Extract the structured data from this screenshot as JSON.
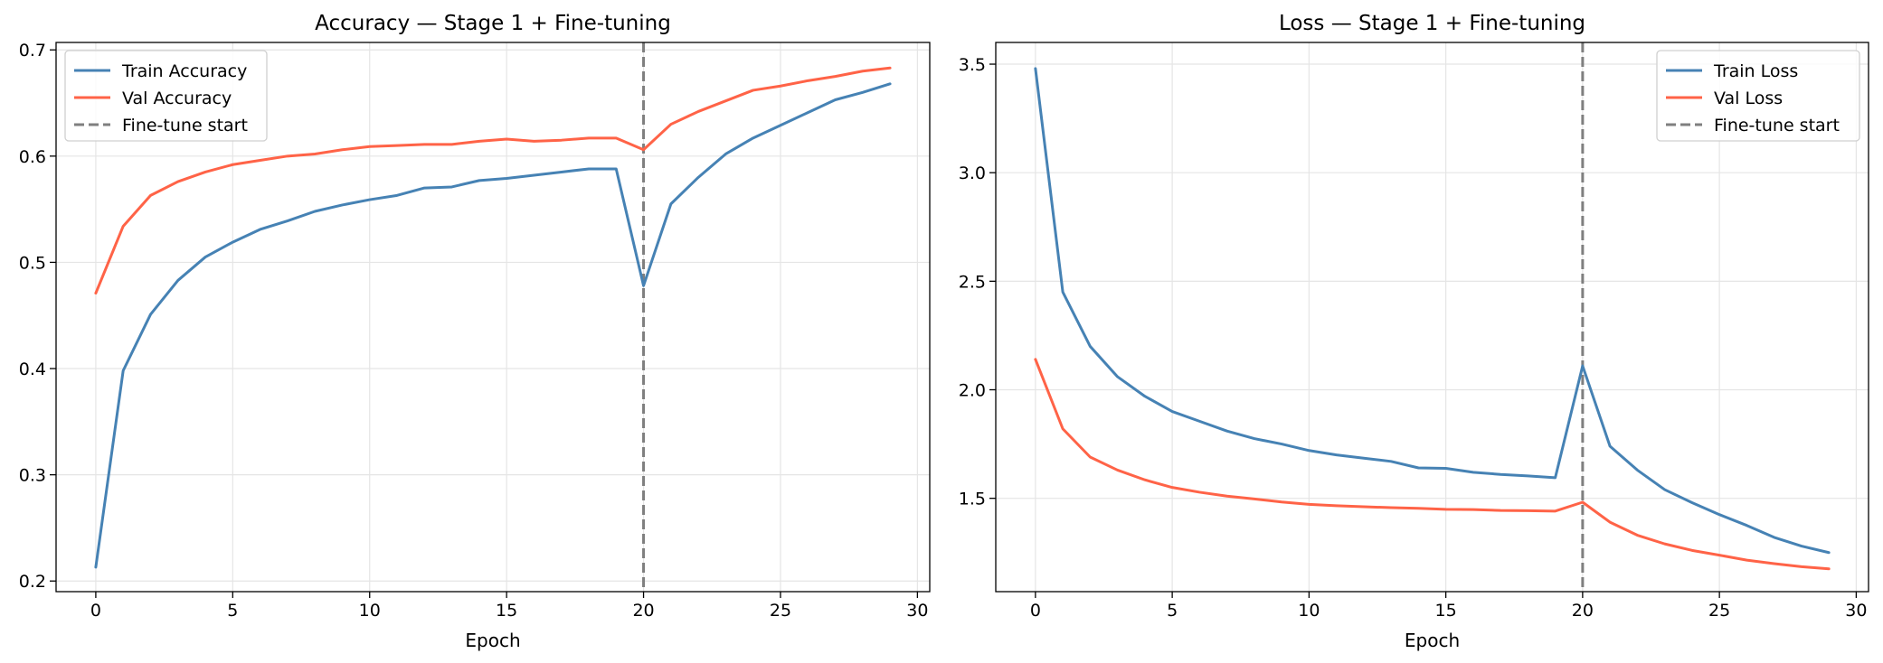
{
  "colors": {
    "train": "#4682b4",
    "val": "#ff6347",
    "finetune": "#7f7f7f",
    "grid": "#e5e5e5",
    "axis": "#000000"
  },
  "chart_data": [
    {
      "type": "line",
      "title": "Accuracy — Stage 1 + Fine-tuning",
      "xlabel": "Epoch",
      "ylabel": "",
      "xlim": [
        -1.45,
        30.45
      ],
      "ylim": [
        0.19,
        0.707
      ],
      "xticks": [
        0,
        5,
        10,
        15,
        20,
        25,
        30
      ],
      "yticks": [
        0.2,
        0.3,
        0.4,
        0.5,
        0.6,
        0.7
      ],
      "ytick_labels": [
        "0.2",
        "0.3",
        "0.4",
        "0.5",
        "0.6",
        "0.7"
      ],
      "grid": true,
      "legend_position": "upper-left",
      "x": [
        0,
        1,
        2,
        3,
        4,
        5,
        6,
        7,
        8,
        9,
        10,
        11,
        12,
        13,
        14,
        15,
        16,
        17,
        18,
        19,
        20,
        21,
        22,
        23,
        24,
        25,
        26,
        27,
        28,
        29
      ],
      "series": [
        {
          "name": "Train Accuracy",
          "color_key": "train",
          "values": [
            0.213,
            0.398,
            0.451,
            0.483,
            0.505,
            0.519,
            0.531,
            0.539,
            0.548,
            0.554,
            0.559,
            0.563,
            0.57,
            0.571,
            0.577,
            0.579,
            0.582,
            0.585,
            0.588,
            0.588,
            0.478,
            0.555,
            0.58,
            0.602,
            0.617,
            0.629,
            0.641,
            0.653,
            0.66,
            0.668
          ]
        },
        {
          "name": "Val Accuracy",
          "color_key": "val",
          "values": [
            0.471,
            0.534,
            0.563,
            0.576,
            0.585,
            0.592,
            0.596,
            0.6,
            0.602,
            0.606,
            0.609,
            0.61,
            0.611,
            0.611,
            0.614,
            0.616,
            0.614,
            0.615,
            0.617,
            0.617,
            0.606,
            0.63,
            0.642,
            0.652,
            0.662,
            0.666,
            0.671,
            0.675,
            0.68,
            0.683
          ]
        }
      ],
      "vline": {
        "x": 20,
        "name": "Fine-tune start",
        "color_key": "finetune"
      }
    },
    {
      "type": "line",
      "title": "Loss — Stage 1 + Fine-tuning",
      "xlabel": "Epoch",
      "ylabel": "",
      "xlim": [
        -1.45,
        30.45
      ],
      "ylim": [
        1.07,
        3.6
      ],
      "xticks": [
        0,
        5,
        10,
        15,
        20,
        25,
        30
      ],
      "yticks": [
        1.5,
        2.0,
        2.5,
        3.0,
        3.5
      ],
      "ytick_labels": [
        "1.5",
        "2.0",
        "2.5",
        "3.0",
        "3.5"
      ],
      "grid": true,
      "legend_position": "upper-right",
      "x": [
        0,
        1,
        2,
        3,
        4,
        5,
        6,
        7,
        8,
        9,
        10,
        11,
        12,
        13,
        14,
        15,
        16,
        17,
        18,
        19,
        20,
        21,
        22,
        23,
        24,
        25,
        26,
        27,
        28,
        29
      ],
      "series": [
        {
          "name": "Train Loss",
          "color_key": "train",
          "values": [
            3.48,
            2.45,
            2.2,
            2.06,
            1.97,
            1.9,
            1.855,
            1.81,
            1.775,
            1.75,
            1.72,
            1.7,
            1.685,
            1.67,
            1.64,
            1.638,
            1.62,
            1.61,
            1.603,
            1.595,
            2.11,
            1.74,
            1.63,
            1.54,
            1.48,
            1.425,
            1.375,
            1.32,
            1.28,
            1.25
          ]
        },
        {
          "name": "Val Loss",
          "color_key": "val",
          "values": [
            2.14,
            1.82,
            1.69,
            1.63,
            1.585,
            1.55,
            1.528,
            1.51,
            1.497,
            1.483,
            1.472,
            1.466,
            1.461,
            1.457,
            1.454,
            1.449,
            1.448,
            1.444,
            1.443,
            1.441,
            1.482,
            1.39,
            1.33,
            1.29,
            1.26,
            1.238,
            1.215,
            1.199,
            1.185,
            1.175
          ]
        }
      ],
      "vline": {
        "x": 20,
        "name": "Fine-tune start",
        "color_key": "finetune"
      }
    }
  ]
}
